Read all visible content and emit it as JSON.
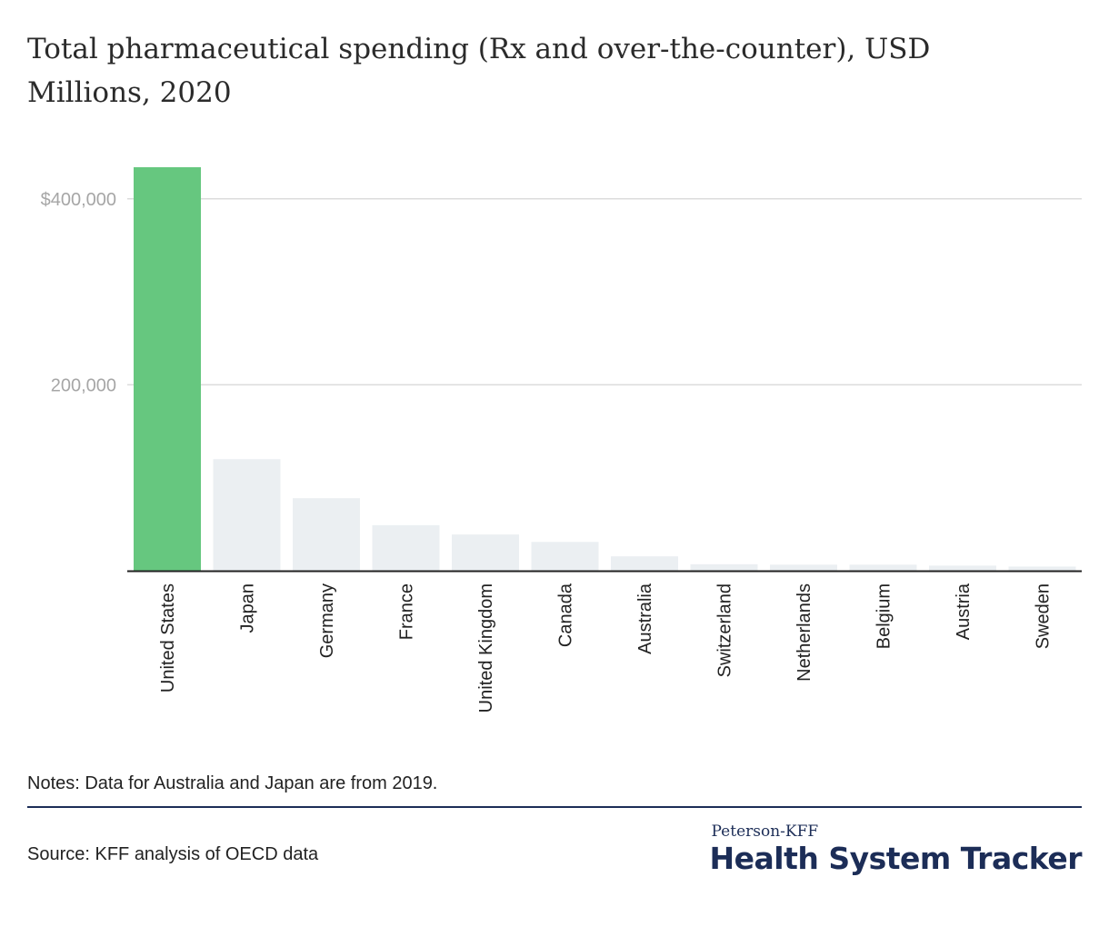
{
  "header": {
    "title": "Total pharmaceutical spending (Rx and over-the-counter), USD Millions, 2020"
  },
  "footer": {
    "notes": "Notes: Data for Australia and Japan are from 2019.",
    "source": "Source: KFF analysis of OECD data",
    "logo_top": "Peterson-KFF",
    "logo_main": "Health System Tracker"
  },
  "colors": {
    "highlight": "#66c77f",
    "bar": "#ebeff2",
    "grid": "#dcdcdc",
    "axis": "#222222",
    "tick_label": "#a6a6a6",
    "brand": "#1c2d57"
  },
  "chart_data": {
    "type": "bar",
    "title": "Total pharmaceutical spending (Rx and over-the-counter), USD Millions, 2020",
    "xlabel": "",
    "ylabel": "",
    "categories": [
      "United States",
      "Japan",
      "Germany",
      "France",
      "United Kingdom",
      "Canada",
      "Australia",
      "Switzerland",
      "Netherlands",
      "Belgium",
      "Austria",
      "Sweden"
    ],
    "values": [
      434000,
      120000,
      78000,
      49000,
      39000,
      31000,
      15500,
      7000,
      6500,
      6500,
      5500,
      4500
    ],
    "highlight_index": 0,
    "ylim": [
      0,
      434000
    ],
    "yticks": [
      200000,
      400000
    ],
    "ytick_labels": [
      "200,000",
      "$400,000"
    ],
    "grid": true,
    "legend": "none"
  }
}
